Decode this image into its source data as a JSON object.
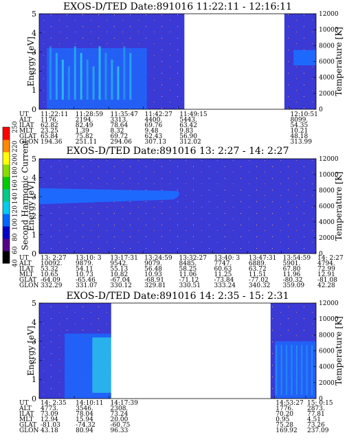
{
  "colors": {
    "background": "#3a3ad6",
    "blank": "#ffffff",
    "enhancement_blue": "#1c6cff",
    "enhancement_cyan": "#2ee6e6"
  },
  "colorbar": {
    "label": "Second Harmonic Current",
    "range": [
      40,
      250
    ],
    "ticks": [
      40,
      60,
      80,
      100,
      120,
      140,
      160,
      180,
      200,
      220,
      250
    ],
    "colors": [
      "#000000",
      "#550088",
      "#0000cc",
      "#0066ff",
      "#00ccee",
      "#00cc88",
      "#00cc00",
      "#88dd00",
      "#ffff00",
      "#ff8800",
      "#ff0000"
    ]
  },
  "chart_data": [
    {
      "type": "heatmap",
      "title": "EXOS-D/TED   Date:891016  11:22:11 - 12:16:11",
      "ylabel": "Energy [eV]",
      "ylabel_right": "Temperature [K]",
      "ylim": [
        0,
        5
      ],
      "yticks": [
        0,
        1,
        2,
        3,
        4,
        5
      ],
      "ylim_right": [
        0,
        12000
      ],
      "yticks_right": [
        0,
        2000,
        4000,
        6000,
        8000,
        10000,
        12000
      ],
      "time_range": [
        "11:22:11",
        "12:16:11"
      ],
      "data_gaps": [
        [
          "11:50:30",
          "12:10:00"
        ]
      ],
      "ut_ticks": [
        {
          "ut": "11:22:11",
          "minute": 0
        },
        {
          "ut": "11:28:59",
          "minute": 6.8
        },
        {
          "ut": "11:35:47",
          "minute": 13.6
        },
        {
          "ut": "11:42:27",
          "minute": 20.3
        },
        {
          "ut": "11:49:15",
          "minute": 27.1
        },
        {
          "ut": "12:10:51",
          "minute": 48.7
        }
      ],
      "ephemeris": {
        "labels": [
          "UT",
          "ALT",
          "ILAT",
          "MLT",
          "GLAT",
          "GLON"
        ],
        "rows": [
          [
            "11:22:11",
            "11:28:59",
            "11:35:47",
            "11:42:27",
            "11:49:15",
            "12:10:51"
          ],
          [
            "1176.",
            "2194.",
            "3313.",
            "4400.",
            "5443.",
            "8099."
          ],
          [
            "62.82",
            "82.49",
            "78.64",
            "69.76",
            "63.42",
            "54.35"
          ],
          [
            "23.25",
            "1.39",
            "8.32",
            "9.48",
            "9.83",
            "10.21"
          ],
          [
            "65.84",
            "75.82",
            "69.72",
            "62.43",
            "56.90",
            "48.18"
          ],
          [
            "194.36",
            "251.11",
            "294.06",
            "307.13",
            "312.02",
            "313.99"
          ]
        ]
      }
    },
    {
      "type": "heatmap",
      "title": "EXOS-D/TED   Date:891016  13: 2:27 - 14: 2:27",
      "ylabel": "Energy [eV]",
      "ylabel_right": "Temperature [K]",
      "ylim": [
        0,
        5
      ],
      "yticks": [
        0,
        1,
        2,
        3,
        4,
        5
      ],
      "ylim_right": [
        0,
        12000
      ],
      "yticks_right": [
        0,
        2000,
        4000,
        6000,
        8000,
        10000,
        12000
      ],
      "time_range": [
        "13:02:27",
        "14:02:27"
      ],
      "data_gaps": [],
      "ut_ticks": [
        {
          "ut": "13: 2:27",
          "minute": 0
        },
        {
          "ut": "13:10: 3",
          "minute": 7.6
        },
        {
          "ut": "13:17:31",
          "minute": 15.1
        },
        {
          "ut": "13:24:59",
          "minute": 22.5
        },
        {
          "ut": "13:32:27",
          "minute": 30
        },
        {
          "ut": "13:40: 3",
          "minute": 37.6
        },
        {
          "ut": "13:47:31",
          "minute": 45.1
        },
        {
          "ut": "13:54:59",
          "minute": 52.5
        },
        {
          "ut": "14: 2:27",
          "minute": 60
        }
      ],
      "ephemeris": {
        "labels": [
          "UT",
          "ALT",
          "ILAT",
          "MLT",
          "GLAT",
          "GLON"
        ],
        "rows": [
          [
            "13: 2:27",
            "13:10: 3",
            "13:17:31",
            "13:24:59",
            "13:32:27",
            "13:40: 3",
            "13:47:31",
            "13:54:59",
            "14: 2:27"
          ],
          [
            "10092.",
            "9879.",
            "9542.",
            "9079.",
            "8485.",
            "7747.",
            "6889.",
            "5901.",
            "4794."
          ],
          [
            "53.32",
            "54.11",
            "55.13",
            "56.48",
            "58.25",
            "60.63",
            "63.72",
            "67.80",
            "72.99"
          ],
          [
            "10.65",
            "10.73",
            "10.82",
            "10.93",
            "11.06",
            "11.25",
            "11.51",
            "11.96",
            "12.91"
          ],
          [
            "-64.09",
            "-65.46",
            "-67.04",
            "-68.91",
            "-71.12",
            "-73.84",
            "-77.02",
            "-80.32",
            "-81.08"
          ],
          [
            "332.29",
            "331.07",
            "330.12",
            "329.81",
            "330.51",
            "333.24",
            "340.32",
            "359.09",
            "42.28"
          ]
        ]
      }
    },
    {
      "type": "heatmap",
      "title": "EXOS-D/TED   Date:891016  14: 2:35 - 15: 2:31",
      "ylabel": "Energy [eV]",
      "ylabel_right": "Temperature [K]",
      "ylim": [
        0,
        5
      ],
      "yticks": [
        0,
        1,
        2,
        3,
        4,
        5
      ],
      "ylim_right": [
        0,
        12000
      ],
      "yticks_right": [
        0,
        2000,
        4000,
        6000,
        8000,
        10000,
        12000
      ],
      "time_range": [
        "14:02:35",
        "15:02:31"
      ],
      "data_gaps": [
        [
          "14:18:10",
          "14:52:40"
        ]
      ],
      "ut_ticks": [
        {
          "ut": "14: 2:35",
          "minute": 0
        },
        {
          "ut": "14:10:11",
          "minute": 7.6
        },
        {
          "ut": "14:17:39",
          "minute": 15.1
        },
        {
          "ut": "14:53:27",
          "minute": 50.9
        },
        {
          "ut": "15: 0:15",
          "minute": 57.7
        }
      ],
      "ephemeris": {
        "labels": [
          "UT",
          "ALT",
          "ILAT",
          "MLT",
          "GLAT",
          "GLON"
        ],
        "rows": [
          [
            "14: 2:35",
            "14:10:11",
            "14:17:39",
            "14:53:27",
            "15: 0:15"
          ],
          [
            "4773.",
            "3546.",
            "2308.",
            "1776.",
            "2873."
          ],
          [
            "73.09",
            "78.04",
            "73.24",
            "70.20",
            "77.81"
          ],
          [
            "12.94",
            "15.94",
            "20.00",
            "0.95",
            "4.51"
          ],
          [
            "-81.03",
            "-74.32",
            "-60.75",
            "75.28",
            "73.26"
          ],
          [
            "43.18",
            "80.94",
            "96.33",
            "169.92",
            "237.09"
          ]
        ]
      }
    }
  ]
}
